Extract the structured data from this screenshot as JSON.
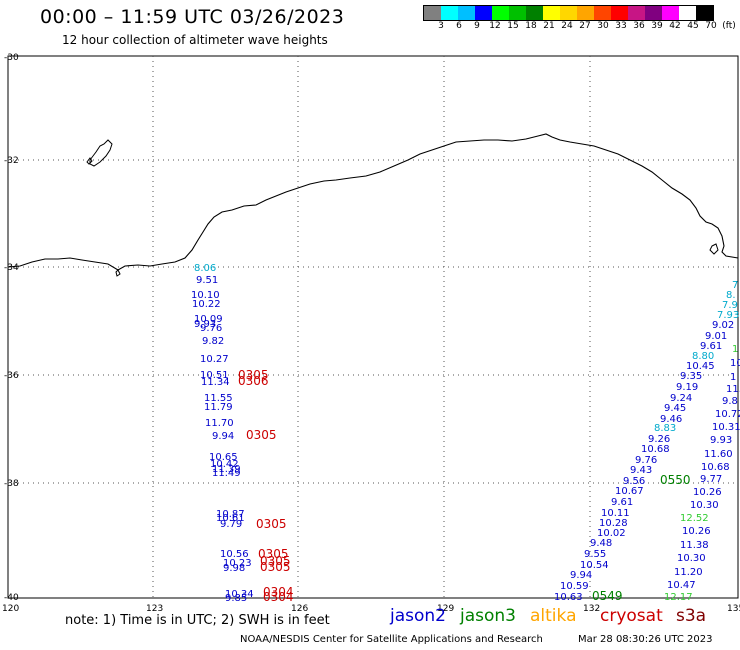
{
  "title": "00:00 – 11:59 UTC 03/26/2023",
  "subtitle": "12 hour collection of altimeter wave heights",
  "colorbar": {
    "colors": [
      "#808080",
      "#00ffff",
      "#00bfff",
      "#0000ff",
      "#00ff00",
      "#00c000",
      "#008000",
      "#ffff00",
      "#ffd700",
      "#ffa500",
      "#ff4500",
      "#ff0000",
      "#c71585",
      "#800080",
      "#ff00ff",
      "#ffffff",
      "#000000"
    ],
    "labels": [
      "3",
      "6",
      "9",
      "12",
      "15",
      "18",
      "21",
      "24",
      "27",
      "30",
      "33",
      "36",
      "39",
      "42",
      "45",
      "70",
      "(ft)"
    ]
  },
  "lat_labels": [
    "-30",
    "-32",
    "-34",
    "-36",
    "-38",
    "-40"
  ],
  "lon_labels": [
    "120",
    "123",
    "126",
    "129",
    "132",
    "135"
  ],
  "note": "note:  1) Time is in UTC;  2) SWH is in feet",
  "legend": [
    {
      "name": "jason2",
      "color": "#0000cc"
    },
    {
      "name": "jason3",
      "color": "#008000"
    },
    {
      "name": "altika",
      "color": "#ffa500"
    },
    {
      "name": "cryosat",
      "color": "#cc0000"
    },
    {
      "name": "s3a",
      "color": "#800000"
    }
  ],
  "credit": "NOAA/NESDIS Center for Satellite Applications and Research",
  "timestamp": "Mar 28 08:30:26 UTC 2023",
  "track_west": [
    {
      "v": "8.06",
      "c": "#00aacc"
    },
    {
      "v": "9.51",
      "c": "#0000cc"
    },
    {
      "v": "10.10",
      "c": "#0000cc"
    },
    {
      "v": "10.22",
      "c": "#0000cc"
    },
    {
      "v": "10.09",
      "c": "#0000cc"
    },
    {
      "v": "9.93",
      "c": "#0000cc"
    },
    {
      "v": "9.76",
      "c": "#0000cc"
    },
    {
      "v": "9.82",
      "c": "#0000cc"
    },
    {
      "v": "10.27",
      "c": "#0000cc"
    },
    {
      "v": "10.51",
      "c": "#0000cc"
    },
    {
      "v": "11.34",
      "c": "#0000cc"
    },
    {
      "v": "11.55",
      "c": "#0000cc"
    },
    {
      "v": "11.79",
      "c": "#0000cc"
    },
    {
      "v": "11.70",
      "c": "#0000cc"
    },
    {
      "v": "9.94",
      "c": "#0000cc"
    },
    {
      "v": "10.65",
      "c": "#0000cc"
    },
    {
      "v": "10.42",
      "c": "#0000cc"
    },
    {
      "v": "11.39",
      "c": "#0000cc"
    },
    {
      "v": "11.49",
      "c": "#0000cc"
    },
    {
      "v": "10.87",
      "c": "#0000cc"
    },
    {
      "v": "10.61",
      "c": "#0000cc"
    },
    {
      "v": "9.79",
      "c": "#0000cc"
    },
    {
      "v": "10.56",
      "c": "#0000cc"
    },
    {
      "v": "10.23",
      "c": "#0000cc"
    },
    {
      "v": "9.98",
      "c": "#0000cc"
    },
    {
      "v": "10.34",
      "c": "#0000cc"
    },
    {
      "v": "9.85",
      "c": "#0000cc"
    }
  ],
  "times_west": [
    "0305",
    "0306",
    "0305",
    "0305",
    "0305",
    "0305",
    "0305",
    "0304",
    "0304"
  ],
  "track_east_a": [
    {
      "v": "10.63",
      "c": "#0000cc"
    },
    {
      "v": "10.59",
      "c": "#0000cc"
    },
    {
      "v": "9.94",
      "c": "#0000cc"
    },
    {
      "v": "10.54",
      "c": "#0000cc"
    },
    {
      "v": "9.55",
      "c": "#0000cc"
    },
    {
      "v": "9.48",
      "c": "#0000cc"
    },
    {
      "v": "10.02",
      "c": "#0000cc"
    },
    {
      "v": "10.28",
      "c": "#0000cc"
    },
    {
      "v": "10.11",
      "c": "#0000cc"
    },
    {
      "v": "9.61",
      "c": "#0000cc"
    },
    {
      "v": "10.67",
      "c": "#0000cc"
    },
    {
      "v": "9.56",
      "c": "#0000cc"
    },
    {
      "v": "9.43",
      "c": "#0000cc"
    },
    {
      "v": "9.76",
      "c": "#0000cc"
    },
    {
      "v": "10.68",
      "c": "#0000cc"
    },
    {
      "v": "9.26",
      "c": "#0000cc"
    },
    {
      "v": "8.83",
      "c": "#00aacc"
    },
    {
      "v": "9.46",
      "c": "#0000cc"
    },
    {
      "v": "9.45",
      "c": "#0000cc"
    },
    {
      "v": "9.24",
      "c": "#0000cc"
    },
    {
      "v": "9.19",
      "c": "#0000cc"
    },
    {
      "v": "9.35",
      "c": "#0000cc"
    },
    {
      "v": "10.45",
      "c": "#0000cc"
    },
    {
      "v": "8.80",
      "c": "#00aacc"
    },
    {
      "v": "9.61",
      "c": "#0000cc"
    },
    {
      "v": "9.01",
      "c": "#0000cc"
    },
    {
      "v": "9.02",
      "c": "#0000cc"
    },
    {
      "v": "7.93",
      "c": "#00aacc"
    },
    {
      "v": "7.9",
      "c": "#00aacc"
    },
    {
      "v": "8.",
      "c": "#00aacc"
    },
    {
      "v": "7",
      "c": "#00aacc"
    }
  ],
  "track_east_b": [
    {
      "v": "12.17",
      "c": "#33cc33"
    },
    {
      "v": "10.47",
      "c": "#0000cc"
    },
    {
      "v": "11.20",
      "c": "#0000cc"
    },
    {
      "v": "10.30",
      "c": "#0000cc"
    },
    {
      "v": "11.38",
      "c": "#0000cc"
    },
    {
      "v": "10.26",
      "c": "#0000cc"
    },
    {
      "v": "12.52",
      "c": "#33cc33"
    },
    {
      "v": "10.30",
      "c": "#0000cc"
    },
    {
      "v": "10.26",
      "c": "#0000cc"
    },
    {
      "v": "9.77",
      "c": "#0000cc"
    },
    {
      "v": "10.68",
      "c": "#0000cc"
    },
    {
      "v": "11.60",
      "c": "#0000cc"
    },
    {
      "v": "9.93",
      "c": "#0000cc"
    },
    {
      "v": "10.31",
      "c": "#0000cc"
    },
    {
      "v": "10.72",
      "c": "#0000cc"
    },
    {
      "v": "9.8",
      "c": "#0000cc"
    },
    {
      "v": "11.",
      "c": "#0000cc"
    },
    {
      "v": "1",
      "c": "#0000cc"
    },
    {
      "v": "10",
      "c": "#0000cc"
    },
    {
      "v": "1",
      "c": "#33cc33"
    }
  ],
  "times_east": [
    {
      "v": "0549",
      "c": "#008000"
    },
    {
      "v": "0550",
      "c": "#008000"
    }
  ]
}
